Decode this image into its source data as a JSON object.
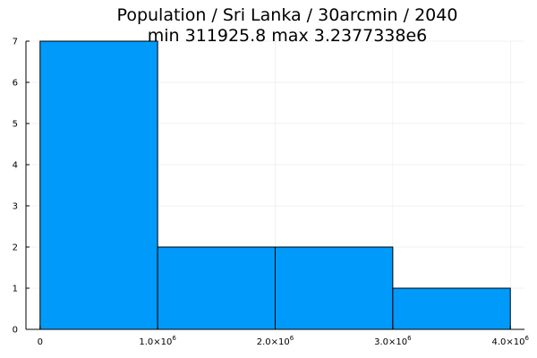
{
  "chart_data": {
    "type": "bar",
    "title": "Population / Sri Lanka / 30arcmin / 2040",
    "subtitle": "min 311925.8  max 3.2377338e6",
    "xlabel": "",
    "ylabel": "",
    "bins": [
      {
        "start": 0,
        "end": 1000000,
        "count": 7
      },
      {
        "start": 1000000,
        "end": 2000000,
        "count": 2
      },
      {
        "start": 2000000,
        "end": 3000000,
        "count": 2
      },
      {
        "start": 3000000,
        "end": 4000000,
        "count": 1
      }
    ],
    "xlim": [
      -120000,
      4120000
    ],
    "ylim": [
      0,
      7
    ],
    "x_ticks": [
      {
        "value": 0,
        "label": "0",
        "exp": ""
      },
      {
        "value": 1000000,
        "label": "1.0×10",
        "exp": "6"
      },
      {
        "value": 2000000,
        "label": "2.0×10",
        "exp": "6"
      },
      {
        "value": 3000000,
        "label": "3.0×10",
        "exp": "6"
      },
      {
        "value": 4000000,
        "label": "4.0×10",
        "exp": "6"
      }
    ],
    "y_ticks": [
      0,
      1,
      2,
      3,
      4,
      5,
      6,
      7
    ],
    "grid": true,
    "legend": "none",
    "bar_color": "#009AFA"
  }
}
